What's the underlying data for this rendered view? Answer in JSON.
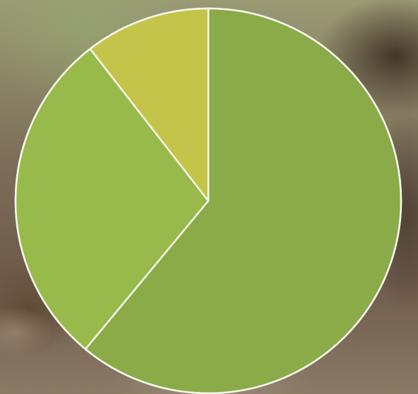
{
  "chart_data": {
    "type": "pie",
    "values": [
      61,
      28.5,
      10.5
    ],
    "colors": [
      "#8aab48",
      "#98ba4a",
      "#c4c44a"
    ],
    "start_angle_deg": 0,
    "direction": "clockwise",
    "title": "",
    "legend": "none"
  },
  "colors": {
    "slice_border": "#f4f6ec"
  }
}
